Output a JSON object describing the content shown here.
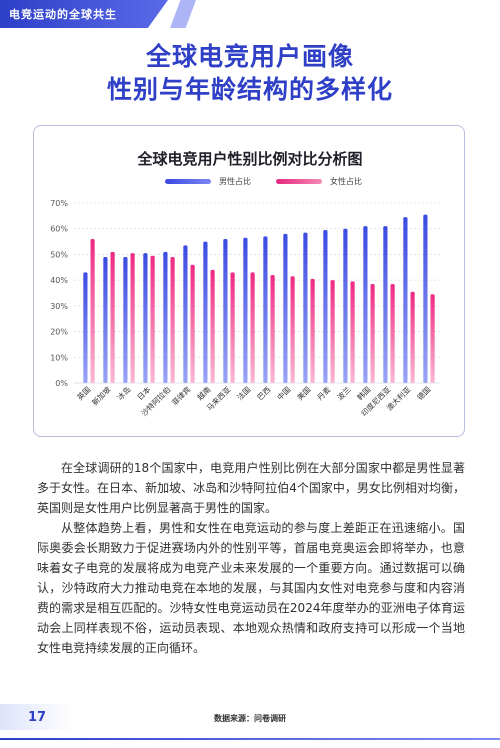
{
  "header": {
    "section_title": "电竞运动的全球共生"
  },
  "page_title": {
    "line1": "全球电竞用户画像",
    "line2": "性别与年龄结构的多样化"
  },
  "chart_data": {
    "type": "bar",
    "title": "全球电竞用户性别比例对比分析图",
    "categories": [
      "英国",
      "新加坡",
      "冰岛",
      "日本",
      "沙特阿拉伯",
      "菲律宾",
      "越南",
      "马来西亚",
      "法国",
      "巴西",
      "中国",
      "美国",
      "丹麦",
      "波兰",
      "韩国",
      "印度尼西亚",
      "澳大利亚",
      "德国"
    ],
    "series": [
      {
        "name": "男性占比",
        "values": [
          43,
          49,
          49,
          50.5,
          51,
          53.5,
          55,
          56,
          56.5,
          57,
          58,
          58.5,
          59.5,
          60,
          61,
          61,
          64.5,
          65.5
        ],
        "color": "#4a5ae6"
      },
      {
        "name": "女性占比",
        "values": [
          56,
          51,
          50.5,
          49.5,
          49,
          46,
          44,
          43,
          43,
          42,
          41.5,
          40.5,
          40,
          39.5,
          38.5,
          38.5,
          35.5,
          34.5
        ],
        "color": "#ee2f86"
      }
    ],
    "yticks": [
      "0%",
      "10%",
      "20%",
      "30%",
      "40%",
      "50%",
      "60%",
      "70%"
    ],
    "ylim": [
      0,
      70
    ],
    "grid": true,
    "legend_position": "top-center"
  },
  "body": {
    "p1": "在全球调研的18个国家中，电竞用户性别比例在大部分国家中都是男性显著多于女性。在日本、新加坡、冰岛和沙特阿拉伯4个国家中，男女比例相对均衡，英国则是女性用户比例显著高于男性的国家。",
    "p2": "从整体趋势上看，男性和女性在电竞运动的参与度上差距正在迅速缩小。国际奥委会长期致力于促进赛场内外的性别平等，首届电竞奥运会即将举办，也意味着女子电竞的发展将成为电竞产业未来发展的一个重要方向。通过数据可以确认，沙特政府大力推动电竞在本地的发展，与其国内女性对电竞参与度和内容消费的需求是相互匹配的。沙特女性电竞运动员在2024年度举办的亚洲电子体育运动会上同样表现不俗，运动员表现、本地观众热情和政府支持可以形成一个当地女性电竞持续发展的正向循环。"
  },
  "footer": {
    "page_number": "17",
    "source": "数据来源：问卷调研"
  }
}
